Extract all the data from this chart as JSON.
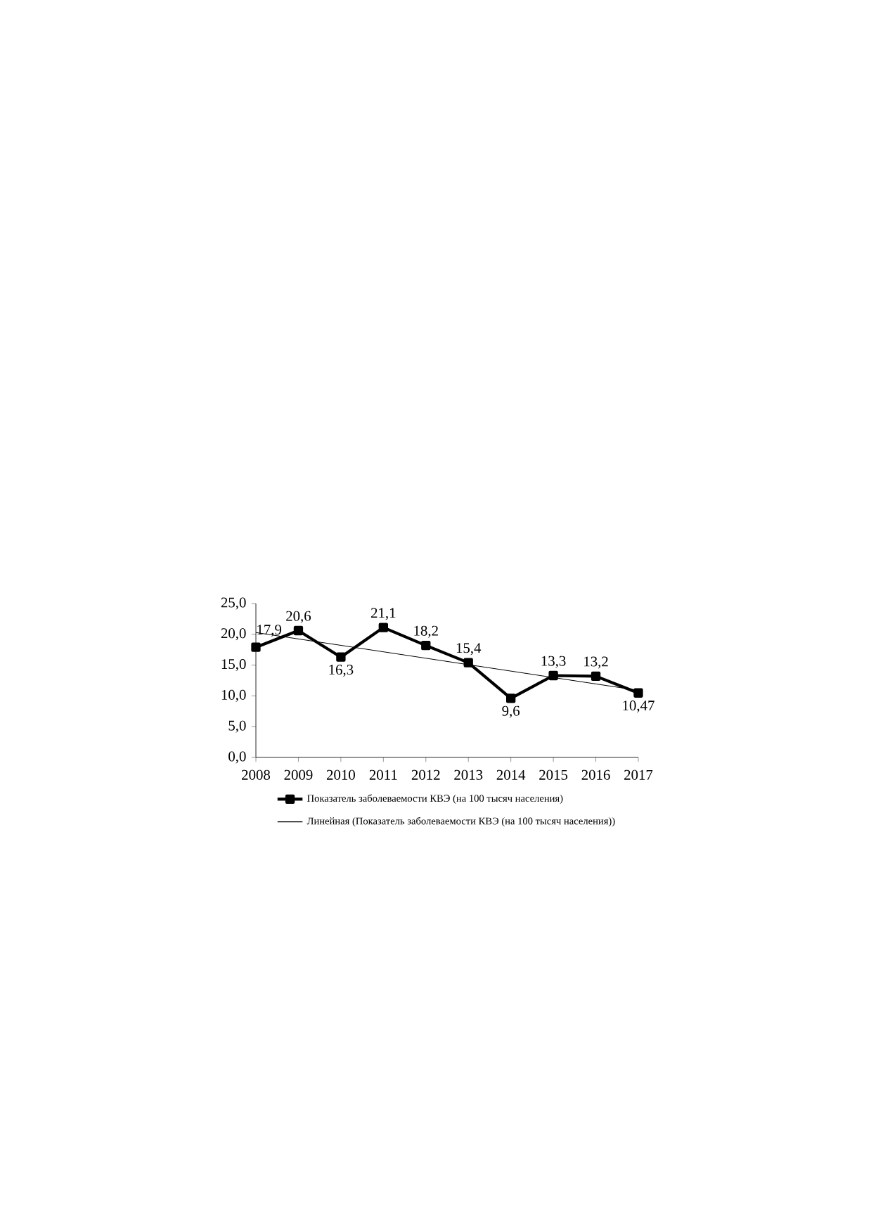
{
  "chart_data": {
    "type": "line",
    "x": [
      2008,
      2009,
      2010,
      2011,
      2012,
      2013,
      2014,
      2015,
      2016,
      2017
    ],
    "series": [
      {
        "name": "Показатель заболеваемости КВЭ (на 100 тысяч населения)",
        "color": "#000000",
        "marker": "square",
        "values": [
          17.9,
          20.6,
          16.3,
          21.1,
          18.2,
          15.4,
          9.6,
          13.3,
          13.2,
          10.47
        ],
        "value_labels": [
          "17,9",
          "20,6",
          "16,3",
          "21,1",
          "18,2",
          "15,4",
          "9,6",
          "13,3",
          "13,2",
          "10,47"
        ]
      },
      {
        "name": "Линейная (Показатель заболеваемости КВЭ (на 100 тысяч населения))",
        "type": "line",
        "color": "#000000",
        "marker": "none",
        "x": [
          2008,
          2017
        ],
        "values": [
          20.3,
          10.9
        ]
      }
    ],
    "xlim": [
      2008,
      2017
    ],
    "xticks": [
      2008,
      2009,
      2010,
      2011,
      2012,
      2013,
      2014,
      2015,
      2016,
      2017
    ],
    "ylim": [
      0,
      25
    ],
    "yticks": [
      {
        "value": 0,
        "label": "0,0"
      },
      {
        "value": 5,
        "label": "5,0"
      },
      {
        "value": 10,
        "label": "10,0"
      },
      {
        "value": 15,
        "label": "15,0"
      },
      {
        "value": 20,
        "label": "20,0"
      },
      {
        "value": 25,
        "label": "25,0"
      }
    ],
    "grid": false,
    "legend": "bottom"
  }
}
